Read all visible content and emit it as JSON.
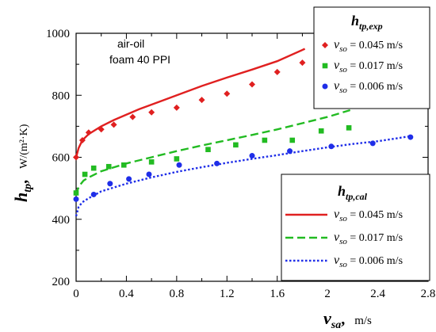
{
  "chart_data": {
    "type": "scatter",
    "annotation": [
      "air-oil",
      "foam 40 PPI"
    ],
    "xaxis": {
      "symbol": "v",
      "subscript": "sa",
      "suffix": ",",
      "unit": "m/s",
      "range": [
        0,
        2.8
      ],
      "ticks": [
        "0",
        "0.4",
        "0.8",
        "1.2",
        "1.6",
        "2",
        "2.4",
        "2.8"
      ]
    },
    "yaxis": {
      "symbol": "h",
      "subscript": "tp",
      "suffix": ",",
      "unit": "W/(m²·K)",
      "range": [
        200,
        1000
      ],
      "ticks": [
        "200",
        "400",
        "600",
        "800",
        "1000"
      ]
    },
    "legend_exp": {
      "title_symbol": "h",
      "title_subscript": "tp,exp",
      "placement": "top-right",
      "entries": [
        {
          "symbol": "v",
          "subscript": "so",
          "value": " = 0.045 m/s",
          "marker": "diamond",
          "color": "#e02020"
        },
        {
          "symbol": "v",
          "subscript": "so",
          "value": " = 0.017 m/s",
          "marker": "square",
          "color": "#22bb22"
        },
        {
          "symbol": "v",
          "subscript": "so",
          "value": " = 0.006 m/s",
          "marker": "circle",
          "color": "#1f2ee8"
        }
      ]
    },
    "legend_cal": {
      "title_symbol": "h",
      "title_subscript": "tp,cal",
      "placement": "bottom-right",
      "entries": [
        {
          "symbol": "v",
          "subscript": "so",
          "value": " = 0.045 m/s",
          "dash": "solid",
          "color": "#e02020"
        },
        {
          "symbol": "v",
          "subscript": "so",
          "value": " = 0.017 m/s",
          "dash": "dashed",
          "color": "#22bb22"
        },
        {
          "symbol": "v",
          "subscript": "so",
          "value": " = 0.006 m/s",
          "dash": "dotted",
          "color": "#1f2ee8"
        }
      ]
    },
    "exp_series": [
      {
        "vso": "0.045 m/s",
        "marker": "diamond",
        "color": "#e02020",
        "x": [
          0,
          0.05,
          0.1,
          0.2,
          0.3,
          0.45,
          0.6,
          0.8,
          1.0,
          1.2,
          1.4,
          1.6,
          1.8
        ],
        "y": [
          600,
          655,
          680,
          690,
          705,
          730,
          745,
          760,
          785,
          805,
          835,
          875,
          905
        ]
      },
      {
        "vso": "0.017 m/s",
        "marker": "square",
        "color": "#22bb22",
        "x": [
          0,
          0.07,
          0.14,
          0.26,
          0.38,
          0.6,
          0.8,
          1.05,
          1.27,
          1.5,
          1.72,
          1.95,
          2.17
        ],
        "y": [
          485,
          545,
          565,
          570,
          575,
          585,
          595,
          625,
          640,
          655,
          655,
          685,
          695
        ]
      },
      {
        "vso": "0.006 m/s",
        "marker": "circle",
        "color": "#1f2ee8",
        "x": [
          0,
          0.14,
          0.27,
          0.42,
          0.58,
          0.82,
          1.12,
          1.4,
          1.7,
          2.03,
          2.36,
          2.66
        ],
        "y": [
          465,
          480,
          515,
          530,
          545,
          575,
          580,
          605,
          620,
          635,
          645,
          665
        ]
      }
    ],
    "cal_series": [
      {
        "vso": "0.045 m/s",
        "dash": "solid",
        "color": "#e02020",
        "x": [
          0,
          0.02,
          0.05,
          0.1,
          0.2,
          0.3,
          0.5,
          0.8,
          1.0,
          1.2,
          1.4,
          1.6,
          1.82
        ],
        "y": [
          600,
          630,
          655,
          675,
          700,
          720,
          755,
          800,
          830,
          857,
          883,
          910,
          950
        ]
      },
      {
        "vso": "0.017 m/s",
        "dash": "dashed",
        "color": "#22bb22",
        "x": [
          0,
          0.02,
          0.06,
          0.1,
          0.2,
          0.4,
          0.6,
          0.8,
          1.0,
          1.2,
          1.4,
          1.6,
          1.8,
          2.0,
          2.18
        ],
        "y": [
          478,
          505,
          525,
          535,
          555,
          580,
          600,
          620,
          638,
          655,
          672,
          690,
          710,
          730,
          752
        ]
      },
      {
        "vso": "0.006 m/s",
        "dash": "dotted",
        "color": "#1f2ee8",
        "x": [
          0,
          0.02,
          0.05,
          0.1,
          0.2,
          0.4,
          0.6,
          0.8,
          1.0,
          1.2,
          1.4,
          1.6,
          1.8,
          2.0,
          2.2,
          2.4,
          2.66
        ],
        "y": [
          410,
          440,
          455,
          468,
          490,
          515,
          535,
          553,
          568,
          582,
          595,
          607,
          620,
          632,
          643,
          652,
          668
        ]
      }
    ]
  }
}
